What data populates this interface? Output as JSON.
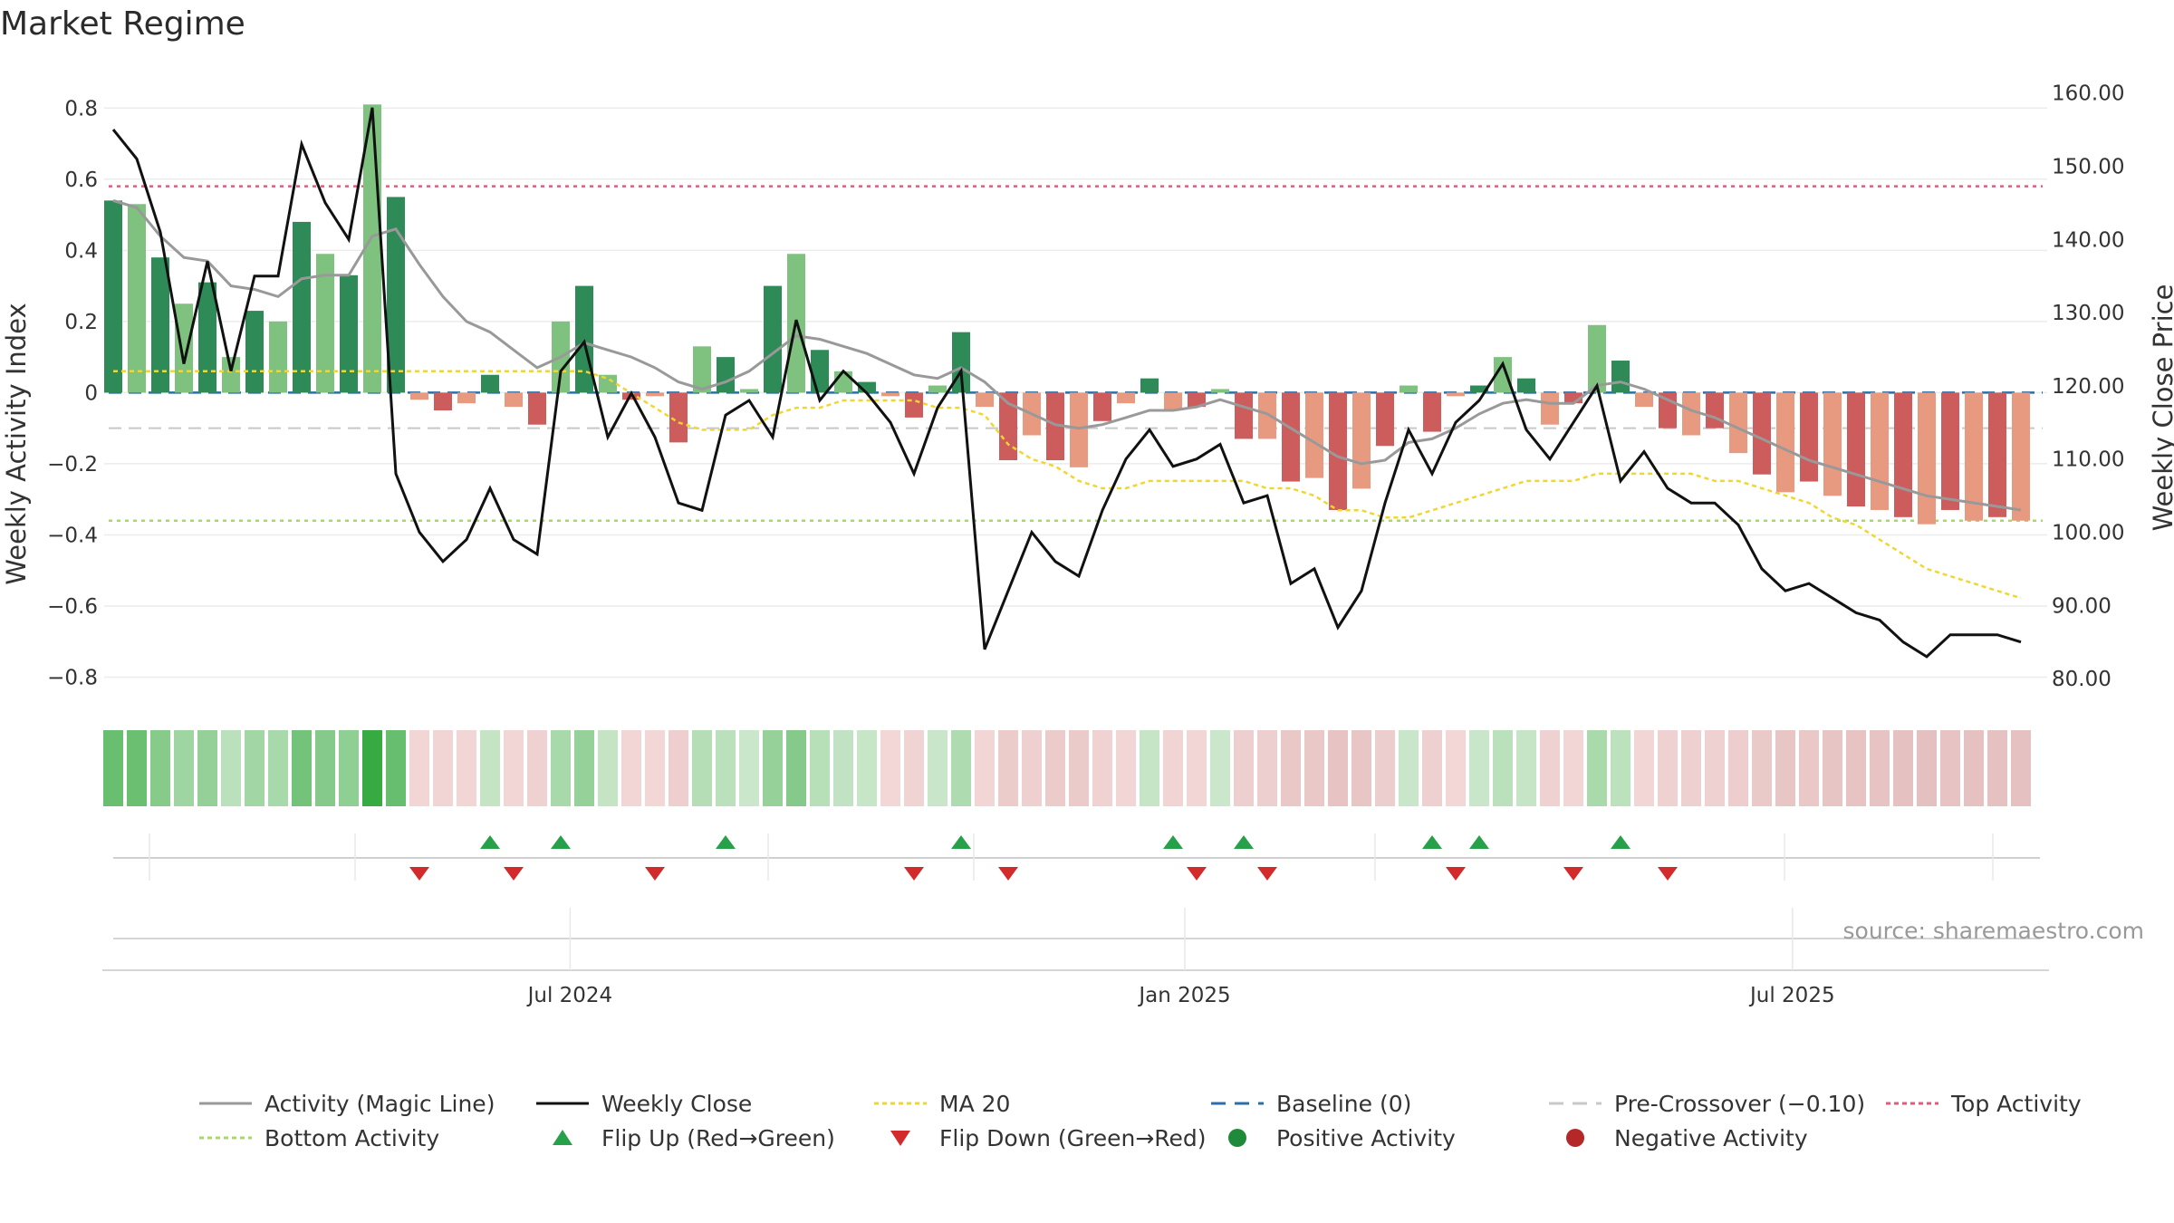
{
  "chart_data": {
    "type": "bar",
    "title": "Market Regime",
    "ylabel_left": "Weekly Activity Index",
    "ylabel_right": "Weekly Close Price",
    "left_ylim": [
      -0.87,
      0.9
    ],
    "right_ylim": [
      76.8,
      162.8
    ],
    "left_ticks": [
      0.8,
      0.6,
      0.4,
      0.2,
      0,
      -0.2,
      -0.4,
      -0.6,
      -0.8
    ],
    "left_tick_labels": [
      "0.8",
      "0.6",
      "0.4",
      "0.2",
      "0",
      "−0.2",
      "−0.4",
      "−0.6",
      "−0.8"
    ],
    "right_ticks": [
      160,
      150,
      140,
      130,
      120,
      110,
      100,
      90,
      80
    ],
    "right_tick_labels": [
      "160.00",
      "150.00",
      "140.00",
      "130.00",
      "120.00",
      "110.00",
      "100.00",
      "90.00",
      "80.00"
    ],
    "x_tick_labels": [
      {
        "label": "Jul 2024",
        "week": 19.4
      },
      {
        "label": "Jan 2025",
        "week": 45.5
      },
      {
        "label": "Jul 2025",
        "week": 71.3
      }
    ],
    "activity": [
      0.54,
      0.53,
      0.38,
      0.25,
      0.31,
      0.1,
      0.23,
      0.2,
      0.48,
      0.39,
      0.33,
      0.81,
      0.55,
      -0.02,
      -0.05,
      -0.03,
      0.05,
      -0.04,
      -0.09,
      0.2,
      0.3,
      0.05,
      -0.02,
      -0.01,
      -0.14,
      0.13,
      0.1,
      0.01,
      0.3,
      0.39,
      0.12,
      0.06,
      0.03,
      -0.01,
      -0.07,
      0.02,
      0.17,
      -0.04,
      -0.19,
      -0.12,
      -0.19,
      -0.21,
      -0.08,
      -0.03,
      0.04,
      -0.05,
      -0.04,
      0.01,
      -0.13,
      -0.13,
      -0.25,
      -0.24,
      -0.33,
      -0.27,
      -0.15,
      0.02,
      -0.11,
      -0.01,
      0.02,
      0.1,
      0.04,
      -0.09,
      -0.03,
      0.19,
      0.09,
      -0.04,
      -0.1,
      -0.12,
      -0.1,
      -0.17,
      -0.23,
      -0.28,
      -0.25,
      -0.29,
      -0.32,
      -0.33,
      -0.35,
      -0.37,
      -0.33,
      -0.36,
      -0.35,
      -0.36
    ],
    "magic_line": [
      0.54,
      0.52,
      0.44,
      0.38,
      0.37,
      0.3,
      0.29,
      0.27,
      0.32,
      0.33,
      0.33,
      0.44,
      0.46,
      0.36,
      0.27,
      0.2,
      0.17,
      0.12,
      0.07,
      0.1,
      0.14,
      0.12,
      0.1,
      0.07,
      0.03,
      0.01,
      0.03,
      0.06,
      0.11,
      0.16,
      0.15,
      0.13,
      0.11,
      0.08,
      0.05,
      0.04,
      0.07,
      0.03,
      -0.03,
      -0.06,
      -0.09,
      -0.1,
      -0.09,
      -0.07,
      -0.05,
      -0.05,
      -0.04,
      -0.02,
      -0.04,
      -0.06,
      -0.1,
      -0.14,
      -0.18,
      -0.2,
      -0.19,
      -0.14,
      -0.13,
      -0.1,
      -0.06,
      -0.03,
      -0.02,
      -0.03,
      -0.03,
      0.02,
      0.03,
      0.01,
      -0.02,
      -0.05,
      -0.07,
      -0.1,
      -0.13,
      -0.16,
      -0.19,
      -0.21,
      -0.23,
      -0.25,
      -0.27,
      -0.29,
      -0.3,
      -0.31,
      -0.32,
      -0.33
    ],
    "weekly_close": [
      155,
      151,
      141,
      123,
      137,
      122,
      135,
      135,
      153,
      145,
      140,
      158,
      108,
      100,
      96,
      99,
      106,
      99,
      97,
      122,
      126,
      113,
      119,
      113,
      104,
      103,
      116,
      118,
      113,
      129,
      118,
      122,
      119,
      115,
      108,
      117,
      122,
      84,
      92,
      100,
      96,
      94,
      103,
      110,
      114,
      109,
      110,
      112,
      104,
      105,
      93,
      95,
      87,
      92,
      104,
      114,
      108,
      115,
      118,
      123,
      114,
      110,
      115,
      120,
      107,
      111,
      106,
      104,
      104,
      101,
      95,
      92,
      93,
      91,
      89,
      88,
      85,
      83,
      86,
      86,
      86,
      85
    ],
    "ma20": [
      122,
      122,
      122,
      122,
      122,
      122,
      122,
      122,
      122,
      122,
      122,
      122,
      122,
      122,
      122,
      122,
      122,
      122,
      122,
      122,
      122,
      121,
      119,
      117,
      115,
      114,
      114,
      114,
      116,
      117,
      117,
      118,
      118,
      118,
      118,
      117,
      117,
      116,
      112,
      110,
      109,
      107,
      106,
      106,
      107,
      107,
      107,
      107,
      107,
      106,
      106,
      105,
      103,
      103,
      102,
      102,
      103,
      104,
      105,
      106,
      107,
      107,
      107,
      108,
      108,
      108,
      108,
      108,
      107,
      107,
      106,
      105,
      104,
      102,
      101,
      99,
      97,
      95,
      94,
      93,
      92,
      91
    ],
    "top_activity": 0.58,
    "bottom_activity": -0.36,
    "baseline": 0,
    "pre_crossover": -0.1,
    "flip_up_weeks": [
      16,
      19,
      26,
      36,
      45,
      48,
      56,
      58,
      64
    ],
    "flip_down_weeks": [
      13,
      17,
      23,
      34,
      38,
      46,
      49,
      57,
      62,
      66
    ],
    "source": "source: sharemaestro.com",
    "legend": [
      {
        "label": "Activity (Magic Line)",
        "style": "solid",
        "color": "#999999"
      },
      {
        "label": "Weekly Close",
        "style": "solid",
        "color": "#111111"
      },
      {
        "label": "MA 20",
        "style": "dotted",
        "color": "#f0d72f"
      },
      {
        "label": "Baseline (0)",
        "style": "dashed",
        "color": "#2a6fa8"
      },
      {
        "label": "Pre-Crossover (−0.10)",
        "style": "dashed",
        "color": "#c8c8c8"
      },
      {
        "label": "Top Activity",
        "style": "dotted",
        "color": "#e05c7a"
      },
      {
        "label": "Bottom Activity",
        "style": "dotted",
        "color": "#a8d86a"
      },
      {
        "label": "Flip Up (Red→Green)",
        "style": "triangle-up",
        "color": "#27a04a"
      },
      {
        "label": "Flip Down (Green→Red)",
        "style": "triangle-down",
        "color": "#d12b2b"
      },
      {
        "label": "Positive Activity",
        "style": "dot",
        "color": "#1f8a3a"
      },
      {
        "label": "Negative Activity",
        "style": "dot",
        "color": "#b52828"
      }
    ],
    "colors": {
      "pos_strong": "#2e8b57",
      "pos_weak": "#7fc17f",
      "neg_strong": "#cd5c5c",
      "neg_weak": "#e89a80",
      "magic": "#999999",
      "close": "#111111",
      "ma20": "#f0d72f",
      "top": "#e05c7a",
      "bottom": "#a8d86a",
      "baseline": "#2a6fa8",
      "precross": "#c8c8c8",
      "flip_up": "#27a04a",
      "flip_down": "#d12b2b"
    }
  }
}
